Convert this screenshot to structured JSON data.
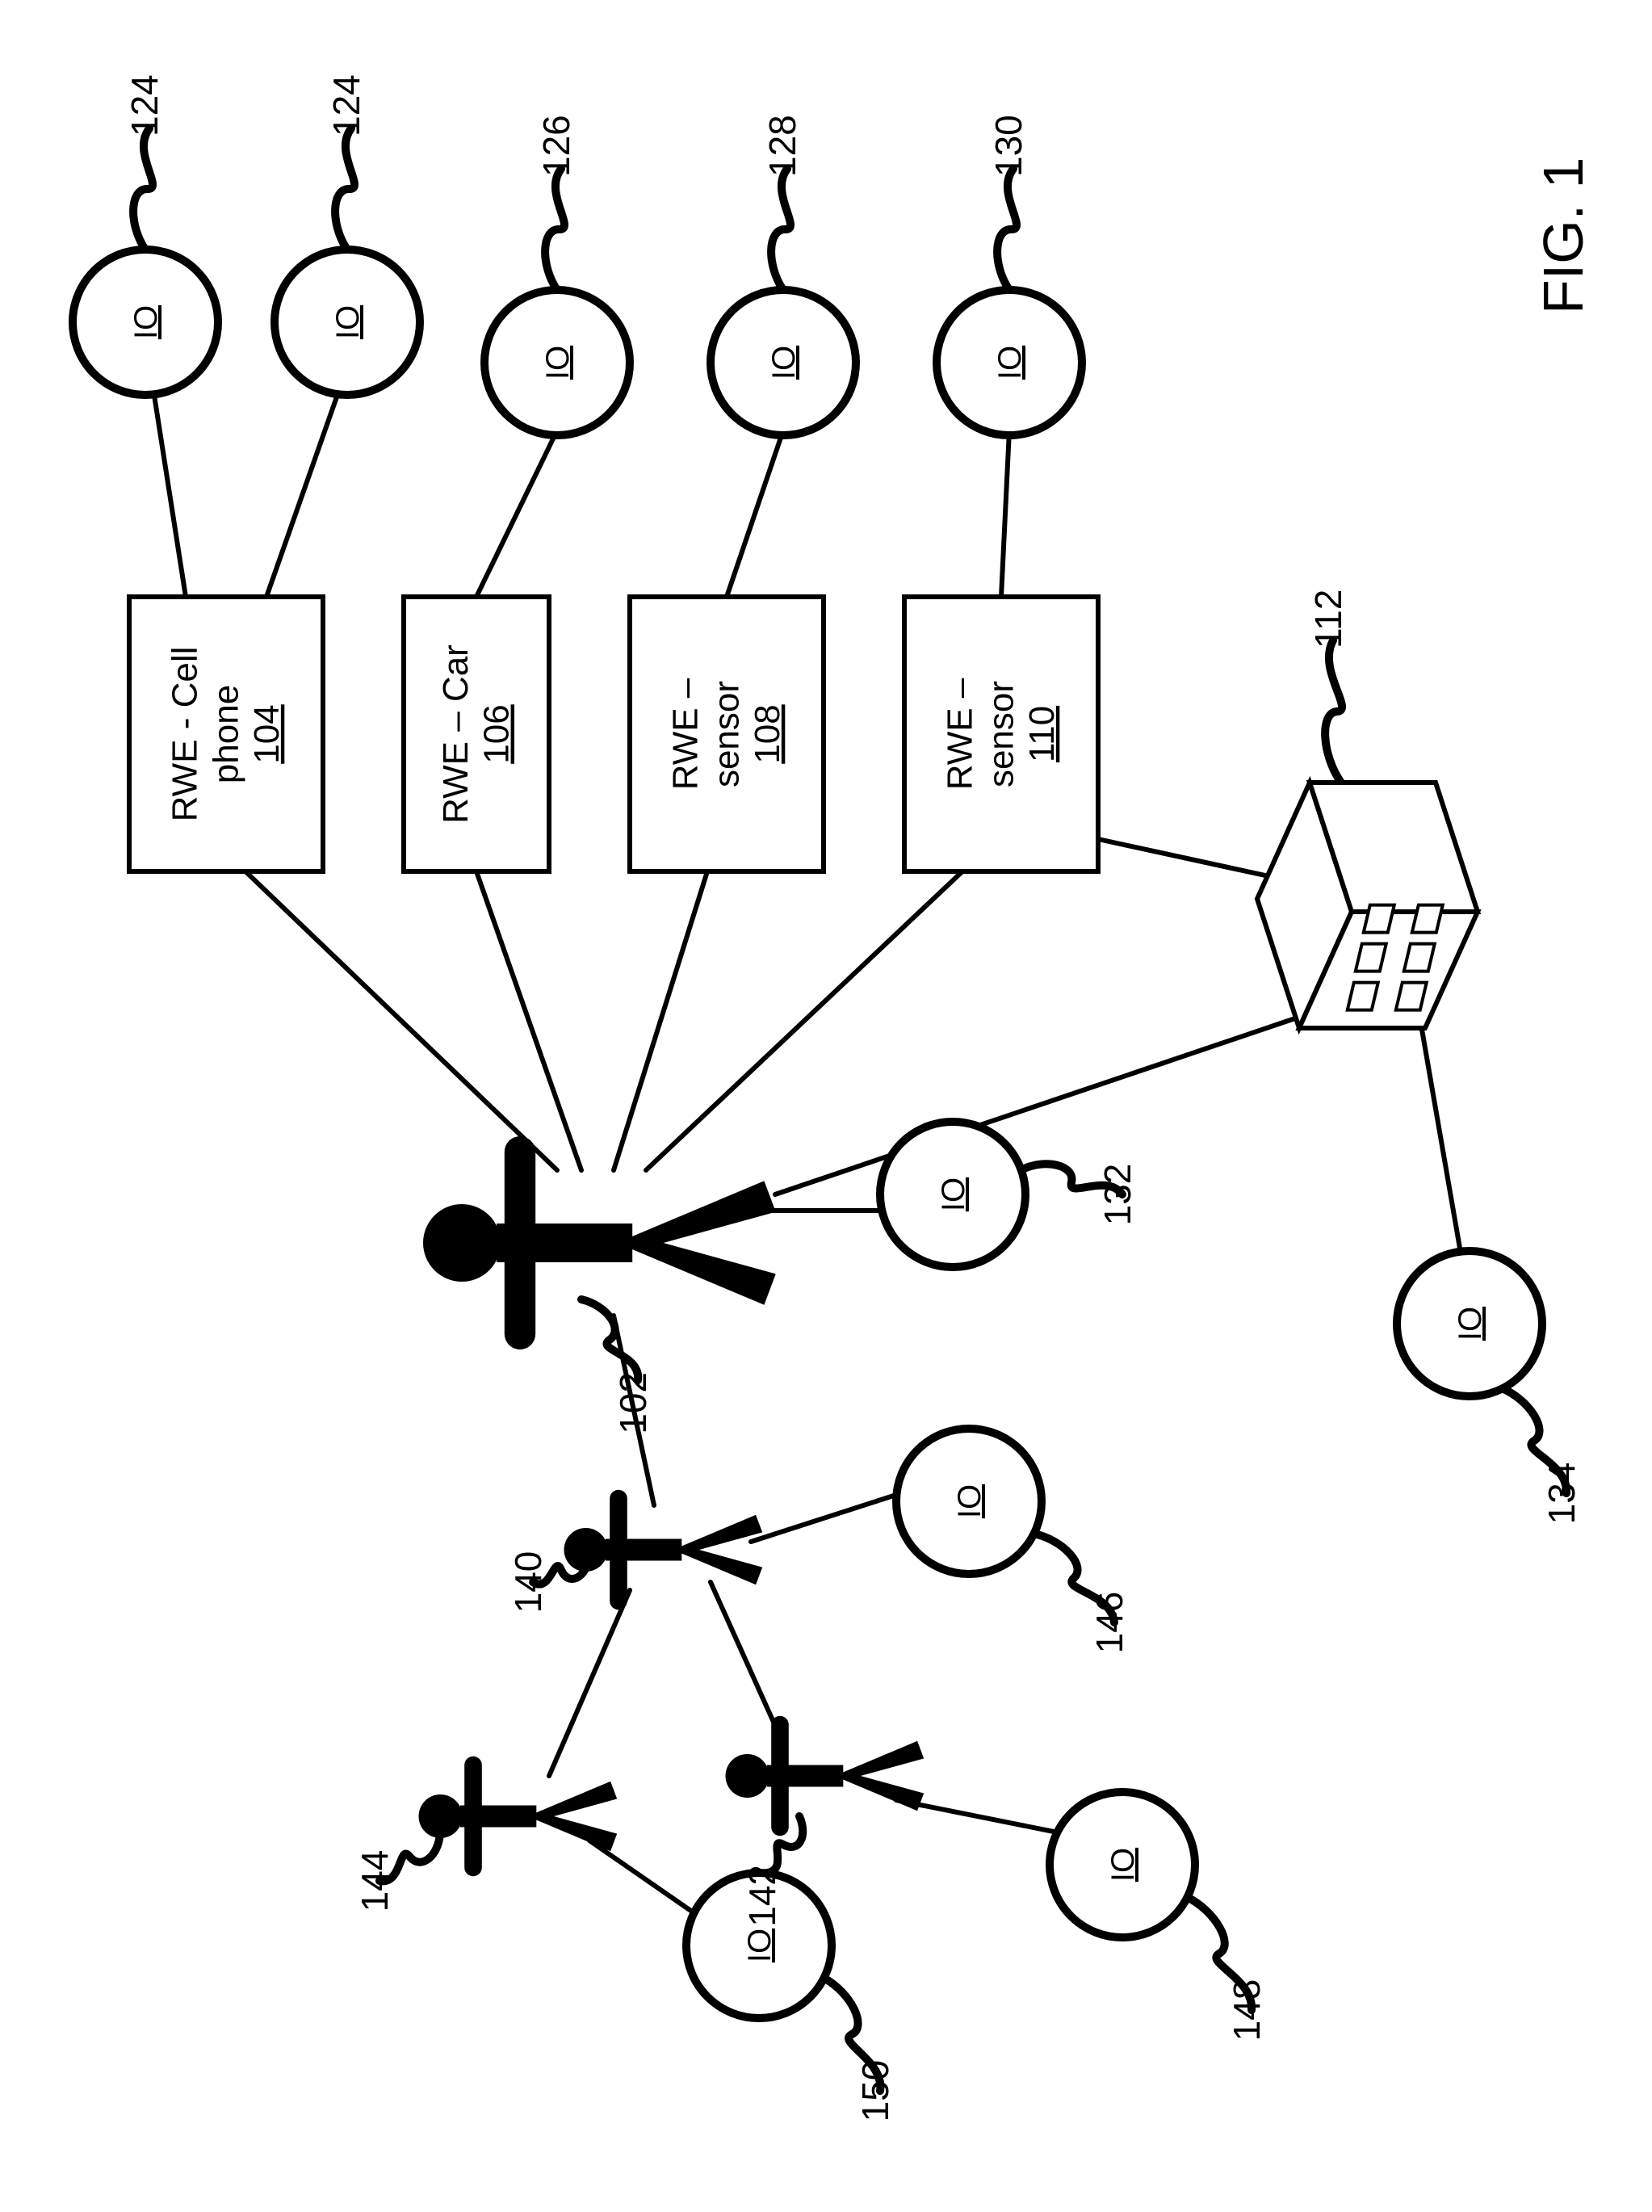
{
  "figure": {
    "caption": "FIG. 1",
    "caption_fontsize": 70,
    "background_color": "#ffffff",
    "stroke_color": "#000000",
    "line_width_thin": 6,
    "line_width_thick": 10,
    "label_fontsize": 46,
    "box_label_fontsize": 44,
    "io_label_fontsize": 40,
    "io_label": "IO",
    "io_underline": true,
    "boxes": [
      {
        "id": "cell",
        "lines": [
          "RWE - Cell",
          "phone"
        ],
        "ref": "104"
      },
      {
        "id": "car",
        "lines": [
          "RWE – Car"
        ],
        "ref": "106"
      },
      {
        "id": "sens1",
        "lines": [
          "RWE –",
          "sensor"
        ],
        "ref": "108"
      },
      {
        "id": "sens2",
        "lines": [
          "RWE –",
          "sensor"
        ],
        "ref": "110"
      }
    ],
    "io_nodes": [
      {
        "id": "io124a",
        "ref": "124"
      },
      {
        "id": "io124b",
        "ref": "124"
      },
      {
        "id": "io126",
        "ref": "126"
      },
      {
        "id": "io128",
        "ref": "128"
      },
      {
        "id": "io130",
        "ref": "130"
      },
      {
        "id": "io132",
        "ref": "132"
      },
      {
        "id": "io134",
        "ref": "134"
      },
      {
        "id": "io146",
        "ref": "146"
      },
      {
        "id": "io148",
        "ref": "148"
      },
      {
        "id": "io150",
        "ref": "150"
      }
    ],
    "people": [
      {
        "id": "p102",
        "ref": "102",
        "size": "large"
      },
      {
        "id": "p140",
        "ref": "140",
        "size": "small"
      },
      {
        "id": "p142",
        "ref": "142",
        "size": "small"
      },
      {
        "id": "p144",
        "ref": "144",
        "size": "small"
      }
    ],
    "building": {
      "id": "b112",
      "ref": "112"
    }
  }
}
